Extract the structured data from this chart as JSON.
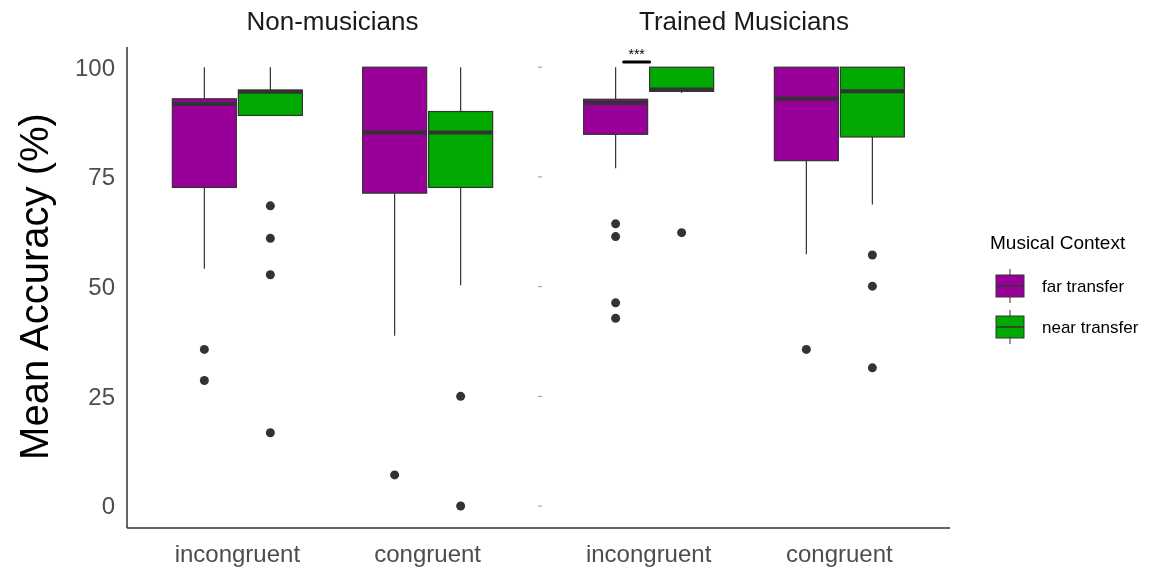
{
  "chart_data": [
    {
      "type": "box",
      "title": "Non-musicians",
      "ylabel": "Mean Accuracy (%)",
      "categories": [
        "incongruent",
        "congruent"
      ],
      "ylim": [
        -5,
        104.6
      ],
      "yticks": [
        0,
        25,
        50,
        75,
        100
      ],
      "grid": false,
      "series": [
        {
          "color": "#990099",
          "boxes": [
            {
              "low": 54.1,
              "q1": 72.6,
              "median": 91.6,
              "q3": 92.8,
              "high": 100,
              "outliers": [
                35.7,
                28.6
              ]
            },
            {
              "low": 38.8,
              "q1": 71.3,
              "median": 85.1,
              "q3": 100,
              "high": 100,
              "outliers": [
                7.1
              ]
            }
          ]
        },
        {
          "color": "#00aa00",
          "boxes": [
            {
              "low": 89,
              "q1": 89,
              "median": 94.4,
              "q3": 94.8,
              "high": 100,
              "outliers": [
                68.4,
                61,
                52.7,
                16.7
              ]
            },
            {
              "low": 50.3,
              "q1": 72.6,
              "median": 85.1,
              "q3": 89.9,
              "high": 100,
              "outliers": [
                25,
                0
              ]
            }
          ]
        }
      ]
    },
    {
      "type": "box",
      "title": "Trained Musicians",
      "categories": [
        "incongruent",
        "congruent"
      ],
      "ylim": [
        -5,
        100
      ],
      "yticks": [
        0,
        25,
        50,
        75,
        100
      ],
      "tick_labels": "x",
      "grid": false,
      "legend": "right",
      "legend_title": "Musical Context",
      "annotations": [
        "***"
      ],
      "series": [
        {
          "name": "far transfer",
          "color": "#990099",
          "boxes": [
            {
              "low": 77,
              "q1": 84.7,
              "median": 91.9,
              "q3": 92.7,
              "high": 100,
              "outliers": [
                64.3,
                61.4,
                46.3,
                42.8
              ]
            },
            {
              "low": 57.4,
              "q1": 78.7,
              "median": 92.8,
              "q3": 100,
              "high": 100,
              "outliers": [
                35.7
              ]
            }
          ]
        },
        {
          "name": "near transfer",
          "color": "#00aa00",
          "boxes": [
            {
              "low": 94.1,
              "q1": 94.5,
              "median": 94.9,
              "q3": 100,
              "high": 100,
              "outliers": [
                62.3
              ]
            },
            {
              "low": 68.7,
              "q1": 84.1,
              "median": 94.5,
              "q3": 100,
              "high": 100,
              "outliers": [
                57.2,
                50.1,
                31.5
              ]
            }
          ]
        }
      ]
    }
  ]
}
